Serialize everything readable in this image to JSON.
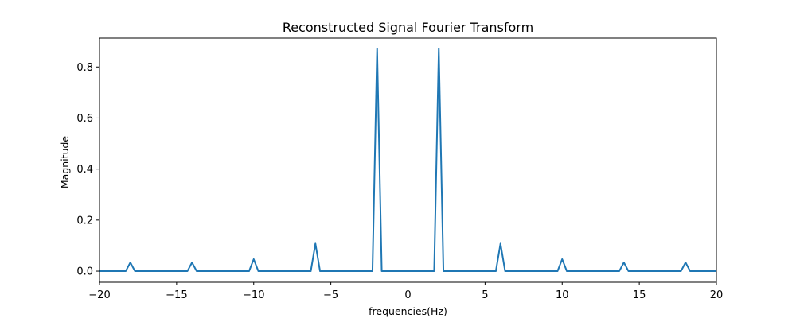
{
  "chart_data": {
    "type": "line",
    "title": "Reconstructed Signal Fourier Transform",
    "xlabel": "frequencies(Hz)",
    "ylabel": "Magnitude",
    "xlim": [
      -20,
      20
    ],
    "ylim": [
      -0.0435,
      0.913
    ],
    "xticks": [
      -20,
      -15,
      -10,
      -5,
      0,
      5,
      10,
      15,
      20
    ],
    "xtick_labels": [
      "−20",
      "−15",
      "−10",
      "−5",
      "0",
      "5",
      "10",
      "15",
      "20"
    ],
    "yticks": [
      0.0,
      0.2,
      0.4,
      0.6,
      0.8
    ],
    "ytick_labels": [
      "0.0",
      "0.2",
      "0.4",
      "0.6",
      "0.8"
    ],
    "grid": false,
    "legend": "none",
    "series": [
      {
        "color": "#1f77b4",
        "x": [
          -20,
          -18.3,
          -18,
          -17.7,
          -14.3,
          -14,
          -13.7,
          -10.3,
          -10,
          -9.7,
          -6.3,
          -6,
          -5.7,
          -2.3,
          -2,
          -1.7,
          1.7,
          2,
          2.3,
          5.7,
          6,
          6.3,
          9.7,
          10,
          10.3,
          13.7,
          14,
          14.3,
          17.7,
          18,
          18.3,
          20
        ],
        "y": [
          0,
          0,
          0.034,
          0,
          0,
          0.034,
          0,
          0,
          0.047,
          0,
          0,
          0.108,
          0,
          0,
          0.872,
          0,
          0,
          0.872,
          0,
          0,
          0.108,
          0,
          0,
          0.047,
          0,
          0,
          0.034,
          0,
          0,
          0.034,
          0,
          0
        ]
      }
    ]
  }
}
